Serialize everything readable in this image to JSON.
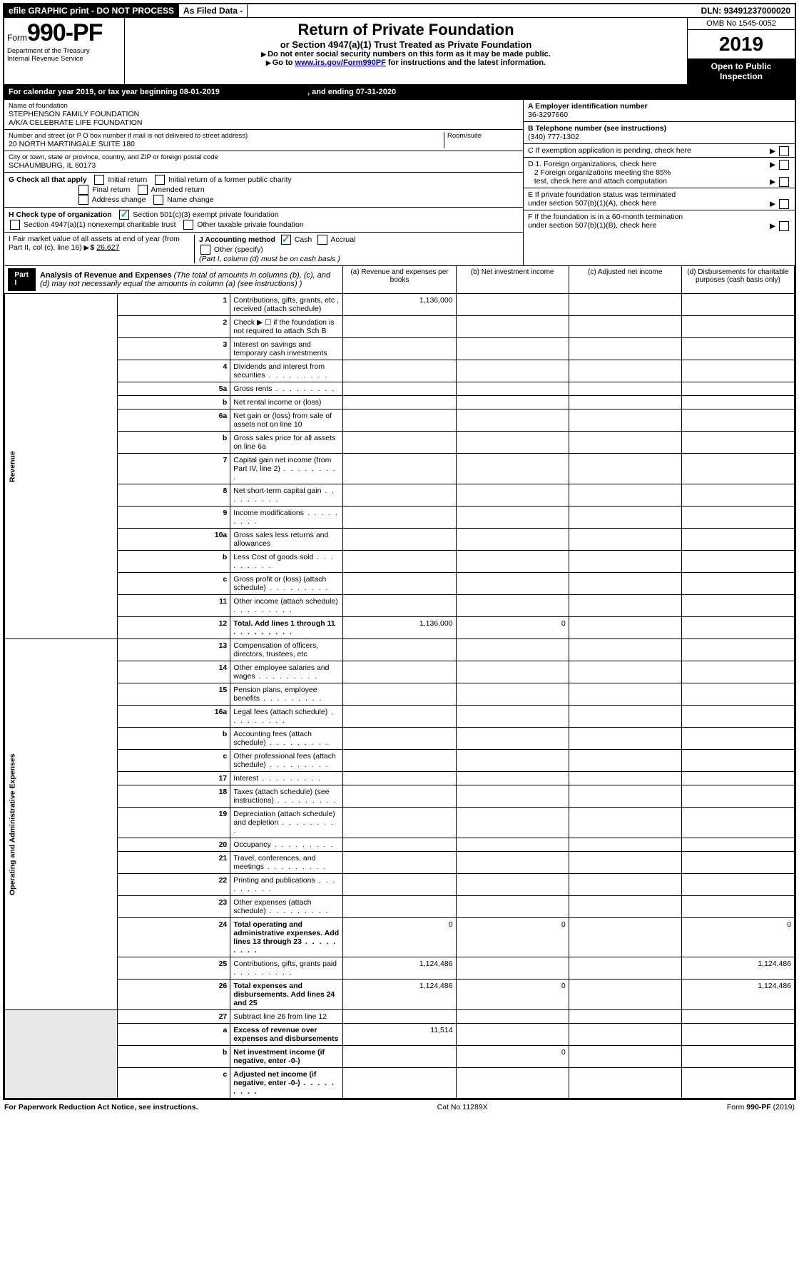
{
  "topbar": {
    "efile": "efile GRAPHIC print - DO NOT PROCESS",
    "asfiled": "As Filed Data -",
    "dln_label": "DLN:",
    "dln": "93491237000020"
  },
  "header": {
    "form_prefix": "Form",
    "form_no": "990-PF",
    "dept": "Department of the Treasury",
    "irs": "Internal Revenue Service",
    "title": "Return of Private Foundation",
    "subtitle": "or Section 4947(a)(1) Trust Treated as Private Foundation",
    "note1": "Do not enter social security numbers on this form as it may be made public.",
    "note2_pre": "Go to ",
    "note2_link": "www.irs.gov/Form990PF",
    "note2_post": " for instructions and the latest information.",
    "omb": "OMB No 1545-0052",
    "year": "2019",
    "open": "Open to Public Inspection"
  },
  "calendar": {
    "pre": "For calendar year 2019, or tax year beginning ",
    "begin": "08-01-2019",
    "mid": " , and ending ",
    "end": "07-31-2020"
  },
  "foundation": {
    "name_label": "Name of foundation",
    "name1": "STEPHENSON FAMILY FOUNDATION",
    "name2": "A/K/A CELEBRATE LIFE FOUNDATION",
    "addr_label": "Number and street (or P O  box number if mail is not delivered to street address)",
    "addr": "20 NORTH MARTINGALE SUITE 180",
    "room_label": "Room/suite",
    "city_label": "City or town, state or province, country, and ZIP or foreign postal code",
    "city": "SCHAUMBURG, IL  60173"
  },
  "right": {
    "a_label": "A Employer identification number",
    "a_val": "36-3297660",
    "b_label": "B Telephone number (see instructions)",
    "b_val": "(340) 777-1302",
    "c_label": "C If exemption application is pending, check here",
    "d1": "D 1. Foreign organizations, check here",
    "d2a": "2 Foreign organizations meeting the 85%",
    "d2b": "test, check here and attach computation",
    "e1": "E  If private foundation status was terminated",
    "e2": "under section 507(b)(1)(A), check here",
    "f1": "F  If the foundation is in a 60-month termination",
    "f2": "under section 507(b)(1)(B), check here"
  },
  "g": {
    "label": "G Check all that apply",
    "o1": "Initial return",
    "o2": "Initial return of a former public charity",
    "o3": "Final return",
    "o4": "Amended return",
    "o5": "Address change",
    "o6": "Name change"
  },
  "h": {
    "label": "H Check type of organization",
    "o1": "Section 501(c)(3) exempt private foundation",
    "o2": "Section 4947(a)(1) nonexempt charitable trust",
    "o3": "Other taxable private foundation"
  },
  "i": {
    "label": "I Fair market value of all assets at end of year (from Part II, col  (c), line 16)",
    "val_label": "$",
    "val": "26,627"
  },
  "j": {
    "label": "J Accounting method",
    "cash": "Cash",
    "accrual": "Accrual",
    "other": "Other (specify)",
    "note": "(Part I, column (d) must be on cash basis )"
  },
  "part1": {
    "badge": "Part I",
    "title": "Analysis of Revenue and Expenses",
    "title_note": " (The total of amounts in columns (b), (c), and (d) may not necessarily equal the amounts in column (a) (see instructions) )",
    "col_a": "(a)   Revenue and expenses per books",
    "col_b": "(b)  Net investment income",
    "col_c": "(c)  Adjusted net income",
    "col_d": "(d)  Disbursements for charitable purposes (cash basis only)"
  },
  "sides": {
    "revenue": "Revenue",
    "expenses": "Operating and Administrative Expenses"
  },
  "rows": [
    {
      "n": "1",
      "t": "Contributions, gifts, grants, etc , received (attach schedule)",
      "a": "1,136,000"
    },
    {
      "n": "2",
      "t": "Check ▶ ☐ if the foundation is not required to attach Sch  B"
    },
    {
      "n": "3",
      "t": "Interest on savings and temporary cash investments"
    },
    {
      "n": "4",
      "t": "Dividends and interest from securities",
      "dots": true
    },
    {
      "n": "5a",
      "t": "Gross rents",
      "dots": true
    },
    {
      "n": "b",
      "t": "Net rental income or (loss)"
    },
    {
      "n": "6a",
      "t": "Net gain or (loss) from sale of assets not on line 10"
    },
    {
      "n": "b",
      "t": "Gross sales price for all assets on line 6a"
    },
    {
      "n": "7",
      "t": "Capital gain net income (from Part IV, line 2)",
      "dots": true
    },
    {
      "n": "8",
      "t": "Net short-term capital gain",
      "dots": true
    },
    {
      "n": "9",
      "t": "Income modifications",
      "dots": true
    },
    {
      "n": "10a",
      "t": "Gross sales less returns and allowances"
    },
    {
      "n": "b",
      "t": "Less  Cost of goods sold",
      "dots": true
    },
    {
      "n": "c",
      "t": "Gross profit or (loss) (attach schedule)",
      "dots": true
    },
    {
      "n": "11",
      "t": "Other income (attach schedule)",
      "dots": true
    },
    {
      "n": "12",
      "t": "Total. Add lines 1 through 11",
      "bold": true,
      "dots": true,
      "a": "1,136,000",
      "b": "0"
    },
    {
      "n": "13",
      "t": "Compensation of officers, directors, trustees, etc"
    },
    {
      "n": "14",
      "t": "Other employee salaries and wages",
      "dots": true
    },
    {
      "n": "15",
      "t": "Pension plans, employee benefits",
      "dots": true
    },
    {
      "n": "16a",
      "t": "Legal fees (attach schedule)",
      "dots": true
    },
    {
      "n": "b",
      "t": "Accounting fees (attach schedule)",
      "dots": true
    },
    {
      "n": "c",
      "t": "Other professional fees (attach schedule)",
      "dots": true
    },
    {
      "n": "17",
      "t": "Interest",
      "dots": true
    },
    {
      "n": "18",
      "t": "Taxes (attach schedule) (see instructions)",
      "dots": true
    },
    {
      "n": "19",
      "t": "Depreciation (attach schedule) and depletion",
      "dots": true
    },
    {
      "n": "20",
      "t": "Occupancy",
      "dots": true
    },
    {
      "n": "21",
      "t": "Travel, conferences, and meetings",
      "dots": true
    },
    {
      "n": "22",
      "t": "Printing and publications",
      "dots": true
    },
    {
      "n": "23",
      "t": "Other expenses (attach schedule)",
      "dots": true
    },
    {
      "n": "24",
      "t": "Total operating and administrative expenses. Add lines 13 through 23",
      "bold": true,
      "dots": true,
      "a": "0",
      "b": "0",
      "d": "0"
    },
    {
      "n": "25",
      "t": "Contributions, gifts, grants paid",
      "dots": true,
      "a": "1,124,486",
      "d": "1,124,486"
    },
    {
      "n": "26",
      "t": "Total expenses and disbursements. Add lines 24 and 25",
      "bold": true,
      "a": "1,124,486",
      "b": "0",
      "d": "1,124,486"
    },
    {
      "n": "27",
      "t": "Subtract line 26 from line 12"
    },
    {
      "n": "a",
      "t": "Excess of revenue over expenses and disbursements",
      "bold": true,
      "a": "11,514"
    },
    {
      "n": "b",
      "t": "Net investment income (if negative, enter -0-)",
      "bold": true,
      "b": "0"
    },
    {
      "n": "c",
      "t": "Adjusted net income (if negative, enter -0-)",
      "bold": true,
      "dots": true
    }
  ],
  "footer": {
    "left": "For Paperwork Reduction Act Notice, see instructions.",
    "mid": "Cat No  11289X",
    "right": "Form 990-PF (2019)"
  }
}
